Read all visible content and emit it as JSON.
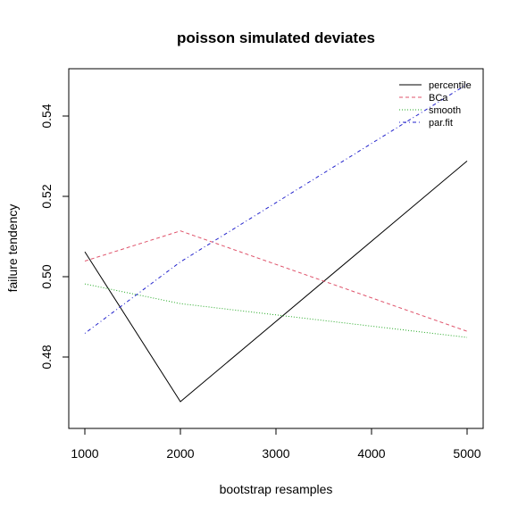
{
  "chart_data": {
    "type": "line",
    "title": "poisson simulated deviates",
    "xlabel": "bootstrap resamples",
    "ylabel": "failure tendency",
    "xlim": [
      1000,
      5000
    ],
    "ylim": [
      0.466,
      0.548
    ],
    "x": [
      1000,
      2000,
      5000
    ],
    "x_ticks": [
      1000,
      2000,
      3000,
      4000,
      5000
    ],
    "x_tick_labels": [
      "1000",
      "2000",
      "3000",
      "4000",
      "5000"
    ],
    "y_ticks": [
      0.48,
      0.5,
      0.52,
      0.54
    ],
    "y_tick_labels": [
      "0.48",
      "0.50",
      "0.52",
      "0.54"
    ],
    "grid": false,
    "legend_position": "top-right",
    "series": [
      {
        "name": "percentile",
        "values": [
          0.5062,
          0.4689,
          0.5288
        ],
        "color": "#000000",
        "dash": "solid"
      },
      {
        "name": "BCa",
        "values": [
          0.5039,
          0.5114,
          0.4864
        ],
        "color": "#df536b",
        "dash": "dashed"
      },
      {
        "name": "smooth",
        "values": [
          0.4982,
          0.4933,
          0.4849
        ],
        "color": "#22a822",
        "dash": "dotted"
      },
      {
        "name": "par.fit",
        "values": [
          0.4859,
          0.5037,
          0.5479
        ],
        "color": "#2222cc",
        "dash": "dotdash"
      }
    ]
  }
}
